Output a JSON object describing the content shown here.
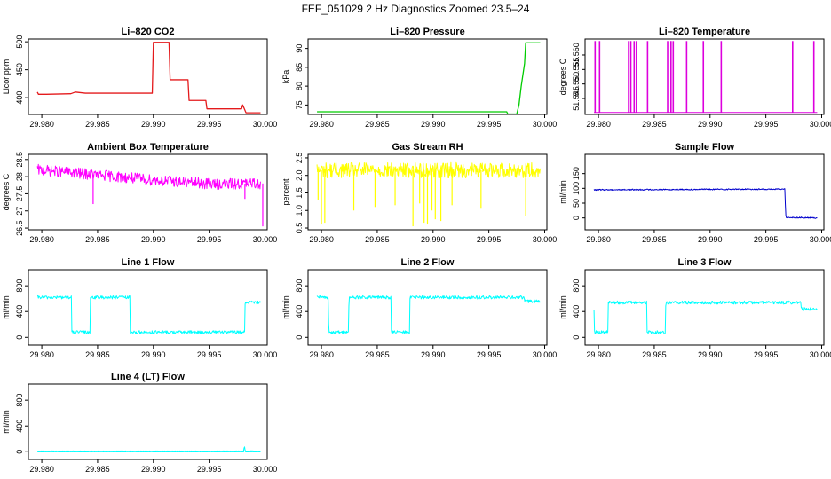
{
  "figure_title": "FEF_051029  2 Hz Diagnostics Zoomed 23.5–24",
  "chart_data": [
    {
      "type": "line",
      "title": "Li–820 CO2",
      "ylabel": "Licor ppm",
      "color": "#e41a1c",
      "xlim": [
        29.9788,
        30.0002
      ],
      "ylim": [
        370,
        505
      ],
      "xticks": [
        29.98,
        29.985,
        29.99,
        29.995,
        30.0
      ],
      "xticklabels": [
        "29.980",
        "29.985",
        "29.990",
        "29.995",
        "30.000"
      ],
      "yticks": [
        400,
        450,
        500
      ],
      "yticklabels": [
        "400",
        "450",
        "500"
      ],
      "series": [
        {
          "x": [
            29.9796,
            29.9797,
            29.9804,
            29.9826,
            29.983,
            29.9839,
            29.9855,
            29.9899,
            29.99,
            29.9914,
            29.9915,
            29.9931,
            29.9932,
            29.9947,
            29.9948,
            29.9979,
            29.998,
            29.9983,
            29.9996
          ],
          "y": [
            410,
            406,
            406,
            407,
            410,
            408,
            408,
            408,
            499,
            499,
            432,
            432,
            395,
            395,
            380,
            380,
            387,
            373,
            373
          ]
        }
      ]
    },
    {
      "type": "line",
      "title": "Li–820 Pressure",
      "ylabel": "kPa",
      "color": "#00cc00",
      "xlim": [
        29.9788,
        30.0002
      ],
      "ylim": [
        72.5,
        92.5
      ],
      "xticks": [
        29.98,
        29.985,
        29.99,
        29.995,
        30.0
      ],
      "xticklabels": [
        "29.980",
        "29.985",
        "29.990",
        "29.995",
        "30.000"
      ],
      "yticks": [
        75,
        80,
        85,
        90
      ],
      "yticklabels": [
        "75",
        "80",
        "85",
        "90"
      ],
      "series": [
        {
          "x": [
            29.9796,
            29.9966,
            29.9967,
            29.9975,
            29.9977,
            29.9979,
            29.9982,
            29.9983,
            29.9996
          ],
          "y": [
            73.2,
            73.2,
            72.6,
            72.6,
            75,
            80,
            86,
            91.5,
            91.5
          ]
        }
      ]
    },
    {
      "type": "line",
      "title": "Li–820 Temperature",
      "ylabel": "degrees C",
      "color": "#dd00dd",
      "xlim": [
        29.9788,
        30.0002
      ],
      "ylim": [
        51.5395,
        51.5655
      ],
      "xticks": [
        29.98,
        29.985,
        29.99,
        29.995,
        30.0
      ],
      "xticklabels": [
        "29.980",
        "29.985",
        "29.990",
        "29.995",
        "30.000"
      ],
      "yticks": [
        51.545,
        51.55,
        51.555,
        51.56
      ],
      "yticklabels": [
        "51.545",
        "51.550",
        "51.555",
        "51.560"
      ],
      "baseline": 51.5402,
      "top": 51.5648,
      "spikes": [
        29.9797,
        29.9801,
        29.9827,
        29.9829,
        29.9832,
        29.9834,
        29.9844,
        29.9862,
        29.9865,
        29.9867,
        29.9879,
        29.9894,
        29.991,
        29.9974,
        29.9993
      ]
    },
    {
      "type": "line",
      "title": "Ambient Box Temperature",
      "ylabel": "degrees C",
      "color": "#ff00ff",
      "xlim": [
        29.9788,
        30.0002
      ],
      "ylim": [
        26.45,
        28.65
      ],
      "xticks": [
        29.98,
        29.985,
        29.99,
        29.995,
        30.0
      ],
      "xticklabels": [
        "29.980",
        "29.985",
        "29.990",
        "29.995",
        "30.000"
      ],
      "yticks": [
        26.5,
        27,
        27.5,
        28,
        28.5
      ],
      "yticklabels": [
        "26.5",
        "27",
        "27.5",
        "28",
        "28.5"
      ],
      "series": [
        {
          "x": [
            29.9796,
            29.985,
            29.99,
            29.9955,
            29.9996
          ],
          "y": [
            28.2,
            28.05,
            27.9,
            27.78,
            27.8
          ]
        }
      ],
      "noise_amplitude": 0.16,
      "dips": [
        [
          29.9846,
          27.2
        ],
        [
          29.9982,
          27.35
        ],
        [
          29.9998,
          26.55
        ]
      ]
    },
    {
      "type": "line",
      "title": "Gas Stream RH",
      "ylabel": "percent",
      "color": "#ffff00",
      "xlim": [
        29.9788,
        30.0002
      ],
      "ylim": [
        0.45,
        2.6
      ],
      "xticks": [
        29.98,
        29.985,
        29.99,
        29.995,
        30.0
      ],
      "xticklabels": [
        "29.980",
        "29.985",
        "29.990",
        "29.995",
        "30.000"
      ],
      "yticks": [
        0.5,
        1,
        1.5,
        2,
        2.5
      ],
      "yticklabels": [
        "0.5",
        "1.0",
        "1.5",
        "2.0",
        "2.5"
      ],
      "series": [
        {
          "x": [
            29.9796,
            29.9996
          ],
          "y": [
            2.15,
            2.15
          ]
        }
      ],
      "noise_amplitude": 0.22,
      "dips": [
        [
          29.9797,
          1.3
        ],
        [
          29.98,
          0.6
        ],
        [
          29.9803,
          0.65
        ],
        [
          29.9829,
          1.0
        ],
        [
          29.9848,
          1.1
        ],
        [
          29.9866,
          1.15
        ],
        [
          29.9882,
          0.55
        ],
        [
          29.9888,
          1.2
        ],
        [
          29.9892,
          0.65
        ],
        [
          29.9895,
          0.6
        ],
        [
          29.9899,
          1.0
        ],
        [
          29.9902,
          0.75
        ],
        [
          29.9907,
          0.7
        ],
        [
          29.9917,
          1.15
        ],
        [
          29.9943,
          1.05
        ],
        [
          29.9983,
          0.85
        ]
      ]
    },
    {
      "type": "line",
      "title": "Sample Flow",
      "ylabel": "ml/min",
      "color": "#0000cc",
      "xlim": [
        29.9788,
        30.0002
      ],
      "ylim": [
        -40,
        215
      ],
      "xticks": [
        29.98,
        29.985,
        29.99,
        29.995,
        30.0
      ],
      "xticklabels": [
        "29.980",
        "29.985",
        "29.990",
        "29.995",
        "30.000"
      ],
      "yticks": [
        0,
        50,
        100,
        150
      ],
      "yticklabels": [
        "0",
        "50",
        "100",
        "150"
      ],
      "series": [
        {
          "x": [
            29.9796,
            29.993,
            29.9967,
            29.99675,
            29.9968,
            29.9996
          ],
          "y": [
            95,
            97,
            97,
            40,
            2,
            0
          ]
        }
      ],
      "noise_amplitude": 2
    },
    {
      "type": "line",
      "title": "Line 1 Flow",
      "ylabel": "ml/min",
      "color": "#00ffff",
      "xlim": [
        29.9788,
        30.0002
      ],
      "ylim": [
        -120,
        1050
      ],
      "xticks": [
        29.98,
        29.985,
        29.99,
        29.995,
        30.0
      ],
      "xticklabels": [
        "29.980",
        "29.985",
        "29.990",
        "29.995",
        "30.000"
      ],
      "yticks": [
        0,
        400,
        800
      ],
      "yticklabels": [
        "0",
        "400",
        "800"
      ],
      "series": [
        {
          "x": [
            29.9796,
            29.9797,
            29.98266,
            29.98267,
            29.98435,
            29.98436,
            29.98791,
            29.98792,
            29.9982,
            29.99821,
            29.9996
          ],
          "y": [
            620,
            620,
            620,
            80,
            80,
            620,
            620,
            80,
            80,
            540,
            540
          ]
        }
      ],
      "noise_amplitude": 25
    },
    {
      "type": "line",
      "title": "Line 2 Flow",
      "ylabel": "ml/min",
      "color": "#00ffff",
      "xlim": [
        29.9788,
        30.0002
      ],
      "ylim": [
        -120,
        1050
      ],
      "xticks": [
        29.98,
        29.985,
        29.99,
        29.995,
        30.0
      ],
      "xticklabels": [
        "29.980",
        "29.985",
        "29.990",
        "29.995",
        "30.000"
      ],
      "yticks": [
        0,
        400,
        800
      ],
      "yticklabels": [
        "0",
        "400",
        "800"
      ],
      "series": [
        {
          "x": [
            29.9796,
            29.98064,
            29.98065,
            29.98245,
            29.98246,
            29.98624,
            29.98625,
            29.98791,
            29.98792,
            29.9982,
            29.99821,
            29.9996
          ],
          "y": [
            620,
            620,
            80,
            80,
            620,
            620,
            80,
            80,
            620,
            620,
            560,
            560
          ]
        }
      ],
      "noise_amplitude": 25
    },
    {
      "type": "line",
      "title": "Line 3 Flow",
      "ylabel": "ml/min",
      "color": "#00ffff",
      "xlim": [
        29.9788,
        30.0002
      ],
      "ylim": [
        -120,
        1050
      ],
      "xticks": [
        29.98,
        29.985,
        29.99,
        29.995,
        30.0
      ],
      "xticklabels": [
        "29.980",
        "29.985",
        "29.990",
        "29.995",
        "30.000"
      ],
      "yticks": [
        0,
        400,
        800
      ],
      "yticklabels": [
        "0",
        "400",
        "800"
      ],
      "series": [
        {
          "x": [
            29.9796,
            29.97965,
            29.9797,
            29.98086,
            29.98087,
            29.98434,
            29.98435,
            29.98602,
            29.98603,
            29.99815,
            29.99816,
            29.9996
          ],
          "y": [
            450,
            80,
            80,
            80,
            540,
            540,
            80,
            80,
            540,
            540,
            440,
            440
          ]
        }
      ],
      "noise_amplitude": 25
    },
    {
      "type": "line",
      "title": "Line 4 (LT) Flow",
      "ylabel": "ml/min",
      "color": "#00ffff",
      "xlim": [
        29.9788,
        30.0002
      ],
      "ylim": [
        -120,
        1050
      ],
      "xticks": [
        29.98,
        29.985,
        29.99,
        29.995,
        30.0
      ],
      "xticklabels": [
        "29.980",
        "29.985",
        "29.990",
        "29.995",
        "30.000"
      ],
      "yticks": [
        0,
        400,
        800
      ],
      "yticklabels": [
        "0",
        "400",
        "800"
      ],
      "series": [
        {
          "x": [
            29.9796,
            29.9981,
            29.99815,
            29.9982,
            29.99825,
            29.9996
          ],
          "y": [
            10,
            10,
            110,
            30,
            12,
            10
          ]
        }
      ],
      "noise_amplitude": 3
    }
  ]
}
